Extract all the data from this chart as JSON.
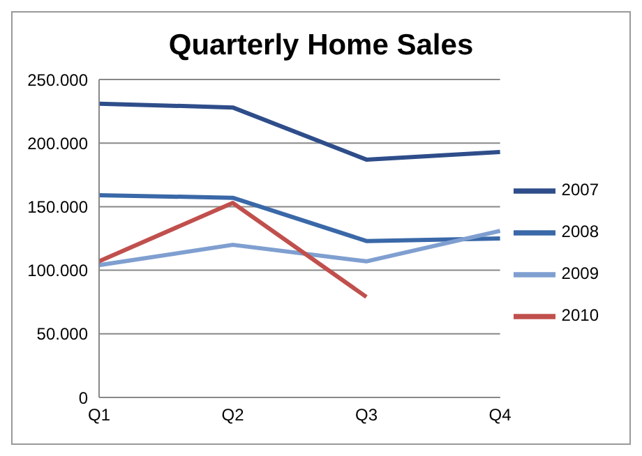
{
  "chart_data": {
    "type": "line",
    "title": "Quarterly Home Sales",
    "categories": [
      "Q1",
      "Q2",
      "Q3",
      "Q4"
    ],
    "series": [
      {
        "name": "2007",
        "color": "#2e4d8a",
        "values": [
          231000,
          228000,
          187000,
          193000
        ]
      },
      {
        "name": "2008",
        "color": "#3a68a8",
        "values": [
          159000,
          157000,
          123000,
          125000
        ]
      },
      {
        "name": "2009",
        "color": "#7f9fd0",
        "values": [
          104000,
          120000,
          107000,
          131000
        ]
      },
      {
        "name": "2010",
        "color": "#c0504d",
        "values": [
          107000,
          153000,
          79000,
          null
        ]
      }
    ],
    "ylim": [
      0,
      250000
    ],
    "yticks": [
      {
        "value": 0,
        "label": "0"
      },
      {
        "value": 50000,
        "label": "50.000"
      },
      {
        "value": 100000,
        "label": "100.000"
      },
      {
        "value": 150000,
        "label": "150.000"
      },
      {
        "value": 200000,
        "label": "200.000"
      },
      {
        "value": 250000,
        "label": "250.000"
      }
    ],
    "grid": "y",
    "legend": "right",
    "marker": "none",
    "line_style": "solid"
  }
}
